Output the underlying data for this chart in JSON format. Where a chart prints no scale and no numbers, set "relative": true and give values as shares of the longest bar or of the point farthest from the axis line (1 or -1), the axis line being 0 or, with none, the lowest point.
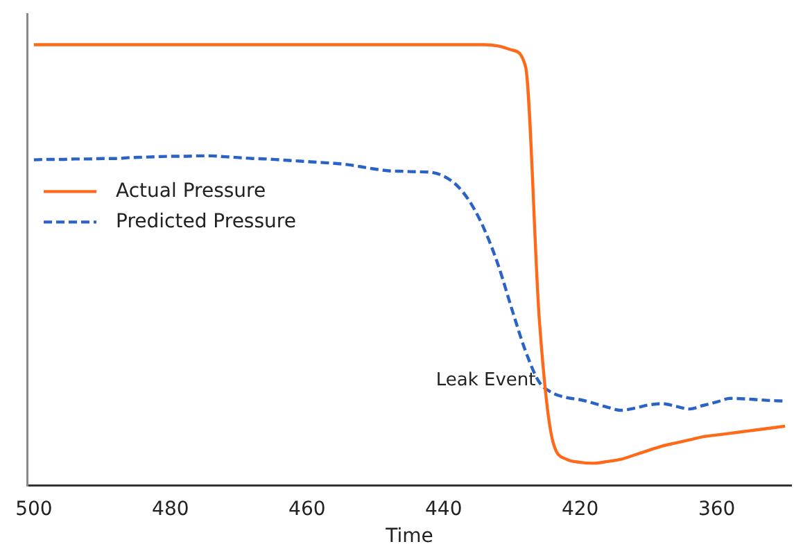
{
  "chart_data": {
    "type": "line",
    "xlabel": "Time",
    "relative": true,
    "grid": false,
    "legend": "left",
    "marker": "none",
    "categories": [
      "500",
      null,
      null,
      null,
      null,
      null,
      null,
      null,
      null,
      null,
      "480",
      null,
      null,
      null,
      null,
      null,
      null,
      null,
      null,
      null,
      "460",
      null,
      null,
      null,
      null,
      null,
      null,
      null,
      null,
      null,
      "440",
      null,
      null,
      null,
      null,
      null,
      null,
      null,
      null,
      null,
      "420",
      null,
      null,
      null,
      null,
      null,
      null,
      null,
      null,
      null,
      "360",
      null,
      null,
      null,
      null,
      null
    ],
    "annotations": [
      "Leak Event"
    ],
    "series": [
      {
        "name": "Actual Pressure",
        "color": "#ff6a1a",
        "line_style": "solid",
        "values": [
          1,
          1,
          1,
          1,
          1,
          1,
          1,
          1,
          1,
          1,
          1,
          1,
          1,
          1,
          1,
          1,
          1,
          1,
          1,
          1,
          1,
          1,
          1,
          1,
          1,
          1,
          1,
          1,
          1,
          1,
          1,
          1,
          1,
          1,
          0.997,
          0.988,
          0.95,
          0.38,
          0.1,
          0.06,
          0.053,
          0.051,
          0.055,
          0.06,
          0.07,
          0.08,
          0.09,
          0.097,
          0.104,
          0.111,
          0.115,
          0.119,
          0.123,
          0.127,
          0.131,
          0.135
        ]
      },
      {
        "name": "Predicted Pressure",
        "color": "#2a62c6",
        "line_style": "dashed",
        "values": [
          0.739,
          0.74,
          0.74,
          0.741,
          0.741,
          0.742,
          0.742,
          0.744,
          0.745,
          0.746,
          0.747,
          0.747,
          0.748,
          0.748,
          0.746,
          0.744,
          0.742,
          0.741,
          0.739,
          0.737,
          0.735,
          0.733,
          0.731,
          0.728,
          0.723,
          0.718,
          0.714,
          0.713,
          0.712,
          0.711,
          0.702,
          0.68,
          0.64,
          0.58,
          0.5,
          0.4,
          0.305,
          0.235,
          0.21,
          0.2,
          0.195,
          0.187,
          0.178,
          0.171,
          0.176,
          0.183,
          0.186,
          0.18,
          0.174,
          0.182,
          0.19,
          0.198,
          0.197,
          0.195,
          0.193,
          0.192
        ]
      }
    ]
  }
}
